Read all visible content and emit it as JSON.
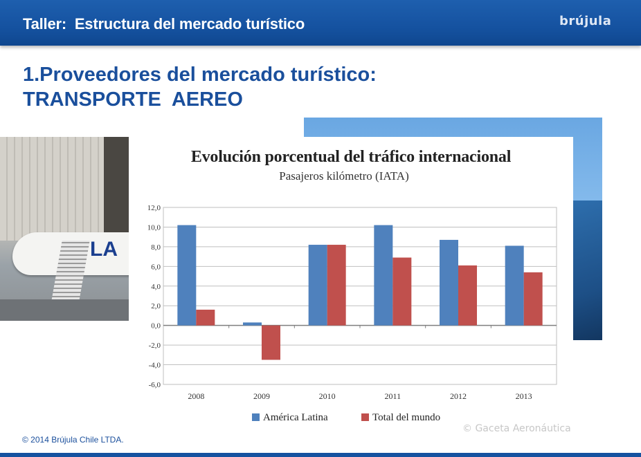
{
  "header": {
    "title": "Taller:  Estructura del mercado turístico",
    "logo_text": "brújula"
  },
  "slide": {
    "title_line1": "1.Proveedores del mercado turístico:",
    "title_line2": "TRANSPORTE  AEREO"
  },
  "photo_left": {
    "lettering": "LA"
  },
  "watermark": "© Gaceta Aeronáutica",
  "footer": {
    "copyright": "© 2014 Brújula Chile LTDA."
  },
  "colors": {
    "header_blue": "#1552a0",
    "title_blue": "#1a4f9c",
    "america_latina": "#4f81bd",
    "total_mundo": "#c0504d"
  },
  "chart_data": {
    "type": "bar",
    "title": "Evolución porcentual del tráfico internacional",
    "subtitle": "Pasajeros kilómetro (IATA)",
    "categories": [
      "2008",
      "2009",
      "2010",
      "2011",
      "2012",
      "2013"
    ],
    "series": [
      {
        "name": "América Latina",
        "color": "#4f81bd",
        "values": [
          10.2,
          0.3,
          8.2,
          10.2,
          8.7,
          8.1
        ]
      },
      {
        "name": "Total del mundo",
        "color": "#c0504d",
        "values": [
          1.6,
          -3.5,
          8.2,
          6.9,
          6.1,
          5.4
        ]
      }
    ],
    "y_ticks": [
      "12,0",
      "10,0",
      "8,0",
      "6,0",
      "4,0",
      "2,0",
      "0,0",
      "-2,0",
      "-4,0",
      "-6,0"
    ],
    "ylim": [
      -6,
      12
    ],
    "grid": true,
    "legend": "bottom"
  }
}
